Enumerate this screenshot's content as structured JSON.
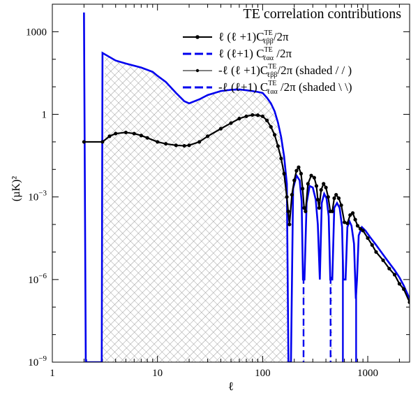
{
  "chart_data": {
    "type": "line",
    "title": "TE correlation contributions",
    "xlabel": "ℓ",
    "ylabel": "(µK)²",
    "x_scale": "log",
    "y_scale": "log",
    "xlim": [
      1,
      2500
    ],
    "ylim": [
      1e-09,
      10000
    ],
    "x_ticks": [
      {
        "value": 1,
        "label": "1"
      },
      {
        "value": 10,
        "label": "10"
      },
      {
        "value": 100,
        "label": "100"
      },
      {
        "value": 1000,
        "label": "1000"
      }
    ],
    "y_ticks": [
      {
        "value": 1e-09,
        "base": "10",
        "exp": "−9"
      },
      {
        "value": 1e-06,
        "base": "10",
        "exp": "−6"
      },
      {
        "value": 0.001,
        "base": "10",
        "exp": "−3"
      },
      {
        "value": 1,
        "base": "1",
        "exp": ""
      },
      {
        "value": 1000,
        "base": "1000",
        "exp": ""
      }
    ],
    "legend_position": "top-right",
    "legend": [
      {
        "prefix": "ℓ (ℓ +1)C",
        "sup": "TE",
        "sub": "ℓββ",
        "suffix": "/2π",
        "style": "solid-dots"
      },
      {
        "prefix": "ℓ (ℓ+1) C",
        "sup": "TE",
        "sub": "ℓαα",
        "suffix": " /2π",
        "style": "dashed"
      },
      {
        "prefix": "-ℓ (ℓ +1)C",
        "sup": "TE",
        "sub": "ℓββ",
        "suffix": "/2π (shaded / / )",
        "style": "thin-dots"
      },
      {
        "prefix": "-ℓ (ℓ+1) C",
        "sup": "TE",
        "sub": "ℓαα",
        "suffix": " /2π (shaded \\ \\)",
        "style": "dashed"
      }
    ],
    "series": [
      {
        "color": "#000000",
        "marker": "dot",
        "points": [
          [
            2,
            0.1
          ],
          [
            3,
            0.1
          ],
          [
            3.5,
            0.16
          ],
          [
            4,
            0.2
          ],
          [
            5,
            0.22
          ],
          [
            6,
            0.2
          ],
          [
            7,
            0.17
          ],
          [
            8,
            0.14
          ],
          [
            10,
            0.1
          ],
          [
            12,
            0.085
          ],
          [
            15,
            0.075
          ],
          [
            18,
            0.072
          ],
          [
            20,
            0.075
          ],
          [
            25,
            0.1
          ],
          [
            30,
            0.16
          ],
          [
            40,
            0.3
          ],
          [
            50,
            0.48
          ],
          [
            60,
            0.7
          ],
          [
            70,
            0.85
          ],
          [
            80,
            0.95
          ],
          [
            90,
            0.93
          ],
          [
            100,
            0.85
          ],
          [
            110,
            0.6
          ],
          [
            120,
            0.35
          ],
          [
            130,
            0.18
          ],
          [
            140,
            0.07
          ],
          [
            150,
            0.025
          ],
          [
            160,
            0.007
          ],
          [
            170,
            0.001
          ],
          [
            175,
            0.0003
          ],
          [
            180,
            0.0001
          ],
          [
            190,
            0.0012
          ],
          [
            200,
            0.004
          ],
          [
            210,
            0.009
          ],
          [
            220,
            0.012
          ],
          [
            232,
            0.007
          ],
          [
            240,
            0.002
          ],
          [
            248,
            0.0004
          ],
          [
            256,
            0.0003
          ],
          [
            270,
            0.003
          ],
          [
            290,
            0.006
          ],
          [
            310,
            0.005
          ],
          [
            325,
            0.0025
          ],
          [
            335,
            0.0008
          ],
          [
            345,
            0.0004
          ],
          [
            360,
            0.0018
          ],
          [
            380,
            0.003
          ],
          [
            400,
            0.0022
          ],
          [
            420,
            0.001
          ],
          [
            440,
            0.0003
          ],
          [
            460,
            0.0003
          ],
          [
            480,
            0.0009
          ],
          [
            500,
            0.0012
          ],
          [
            530,
            0.0009
          ],
          [
            560,
            0.0005
          ],
          [
            600,
            0.00012
          ],
          [
            640,
            0.00011
          ],
          [
            680,
            0.00022
          ],
          [
            720,
            0.00026
          ],
          [
            760,
            0.00015
          ],
          [
            800,
            9e-05
          ],
          [
            850,
            7e-05
          ],
          [
            900,
            6e-05
          ],
          [
            1000,
            3.2e-05
          ],
          [
            1100,
            1.8e-05
          ],
          [
            1200,
            1e-05
          ],
          [
            1400,
            5e-06
          ],
          [
            1600,
            2.5e-06
          ],
          [
            1800,
            1.5e-06
          ],
          [
            2000,
            7e-07
          ],
          [
            2200,
            4.5e-07
          ],
          [
            2500,
            1.5e-07
          ]
        ]
      },
      {
        "color": "#0000ee",
        "marker": "none",
        "points": [
          [
            2,
            5000
          ],
          [
            2.08,
            1e-09
          ],
          [
            2.95,
            1e-09
          ],
          [
            3,
            170
          ],
          [
            4,
            90
          ],
          [
            5,
            70
          ],
          [
            7,
            50
          ],
          [
            9,
            35
          ],
          [
            10,
            25
          ],
          [
            12,
            15
          ],
          [
            15,
            6
          ],
          [
            18,
            3
          ],
          [
            20,
            2.5
          ],
          [
            25,
            3.5
          ],
          [
            30,
            5
          ],
          [
            40,
            7
          ],
          [
            50,
            7.8
          ],
          [
            60,
            8
          ],
          [
            70,
            7.5
          ],
          [
            80,
            7
          ],
          [
            90,
            6.5
          ],
          [
            100,
            6
          ],
          [
            110,
            4
          ],
          [
            120,
            2.5
          ],
          [
            130,
            1.3
          ],
          [
            140,
            0.5
          ],
          [
            150,
            0.15
          ],
          [
            160,
            0.03
          ],
          [
            170,
            0.003
          ],
          [
            176,
            1e-09
          ],
          [
            186,
            1e-09
          ],
          [
            195,
            0.002
          ],
          [
            210,
            0.006
          ],
          [
            225,
            0.004
          ],
          [
            235,
            0.0007
          ],
          [
            242,
            1e-06
          ],
          [
            250,
            1e-06
          ],
          [
            262,
            0.0006
          ],
          [
            280,
            0.0025
          ],
          [
            300,
            0.0022
          ],
          [
            320,
            0.0008
          ],
          [
            335,
            0.0001
          ],
          [
            350,
            1e-06
          ],
          [
            365,
            0.0006
          ],
          [
            385,
            0.0013
          ],
          [
            405,
            0.0009
          ],
          [
            425,
            0.0002
          ],
          [
            440,
            1e-06
          ],
          [
            460,
            1e-06
          ],
          [
            480,
            0.0004
          ],
          [
            510,
            0.0006
          ],
          [
            540,
            0.0004
          ],
          [
            570,
            8e-05
          ],
          [
            585,
            1e-06
          ],
          [
            615,
            1e-06
          ],
          [
            640,
            8e-05
          ],
          [
            670,
            0.00013
          ],
          [
            700,
            9e-05
          ],
          [
            740,
            2e-05
          ],
          [
            770,
            2e-07
          ],
          [
            790,
            1e-06
          ],
          [
            820,
            4e-05
          ],
          [
            880,
            8e-05
          ],
          [
            950,
            6e-05
          ],
          [
            1050,
            3.5e-05
          ],
          [
            1200,
            1.8e-05
          ],
          [
            1400,
            8e-06
          ],
          [
            1600,
            4e-06
          ],
          [
            1800,
            2.2e-06
          ],
          [
            2000,
            1.2e-06
          ],
          [
            2200,
            6e-07
          ],
          [
            2500,
            2e-07
          ]
        ]
      }
    ],
    "shaded_regions": [
      {
        "x_range": [
          2.05,
          2.15
        ],
        "hatch": "//"
      },
      {
        "x_range": [
          2.95,
          176
        ],
        "hatch": "//"
      },
      {
        "x_range": [
          242,
          250
        ],
        "hatch": "\\\\"
      },
      {
        "x_range": [
          440,
          460
        ],
        "hatch": "\\\\"
      }
    ],
    "vertical_drops": [
      {
        "x": 2.1,
        "color": "#0000ee",
        "style": "dashed"
      },
      {
        "x": 176,
        "color": "#0000ee",
        "style": "solid"
      },
      {
        "x": 245,
        "color": "#0000ee",
        "style": "dashed"
      },
      {
        "x": 443,
        "color": "#0000ee",
        "style": "dashed"
      },
      {
        "x": 580,
        "color": "#0000ee",
        "style": "solid"
      },
      {
        "x": 775,
        "color": "#0000ee",
        "style": "solid"
      }
    ]
  }
}
